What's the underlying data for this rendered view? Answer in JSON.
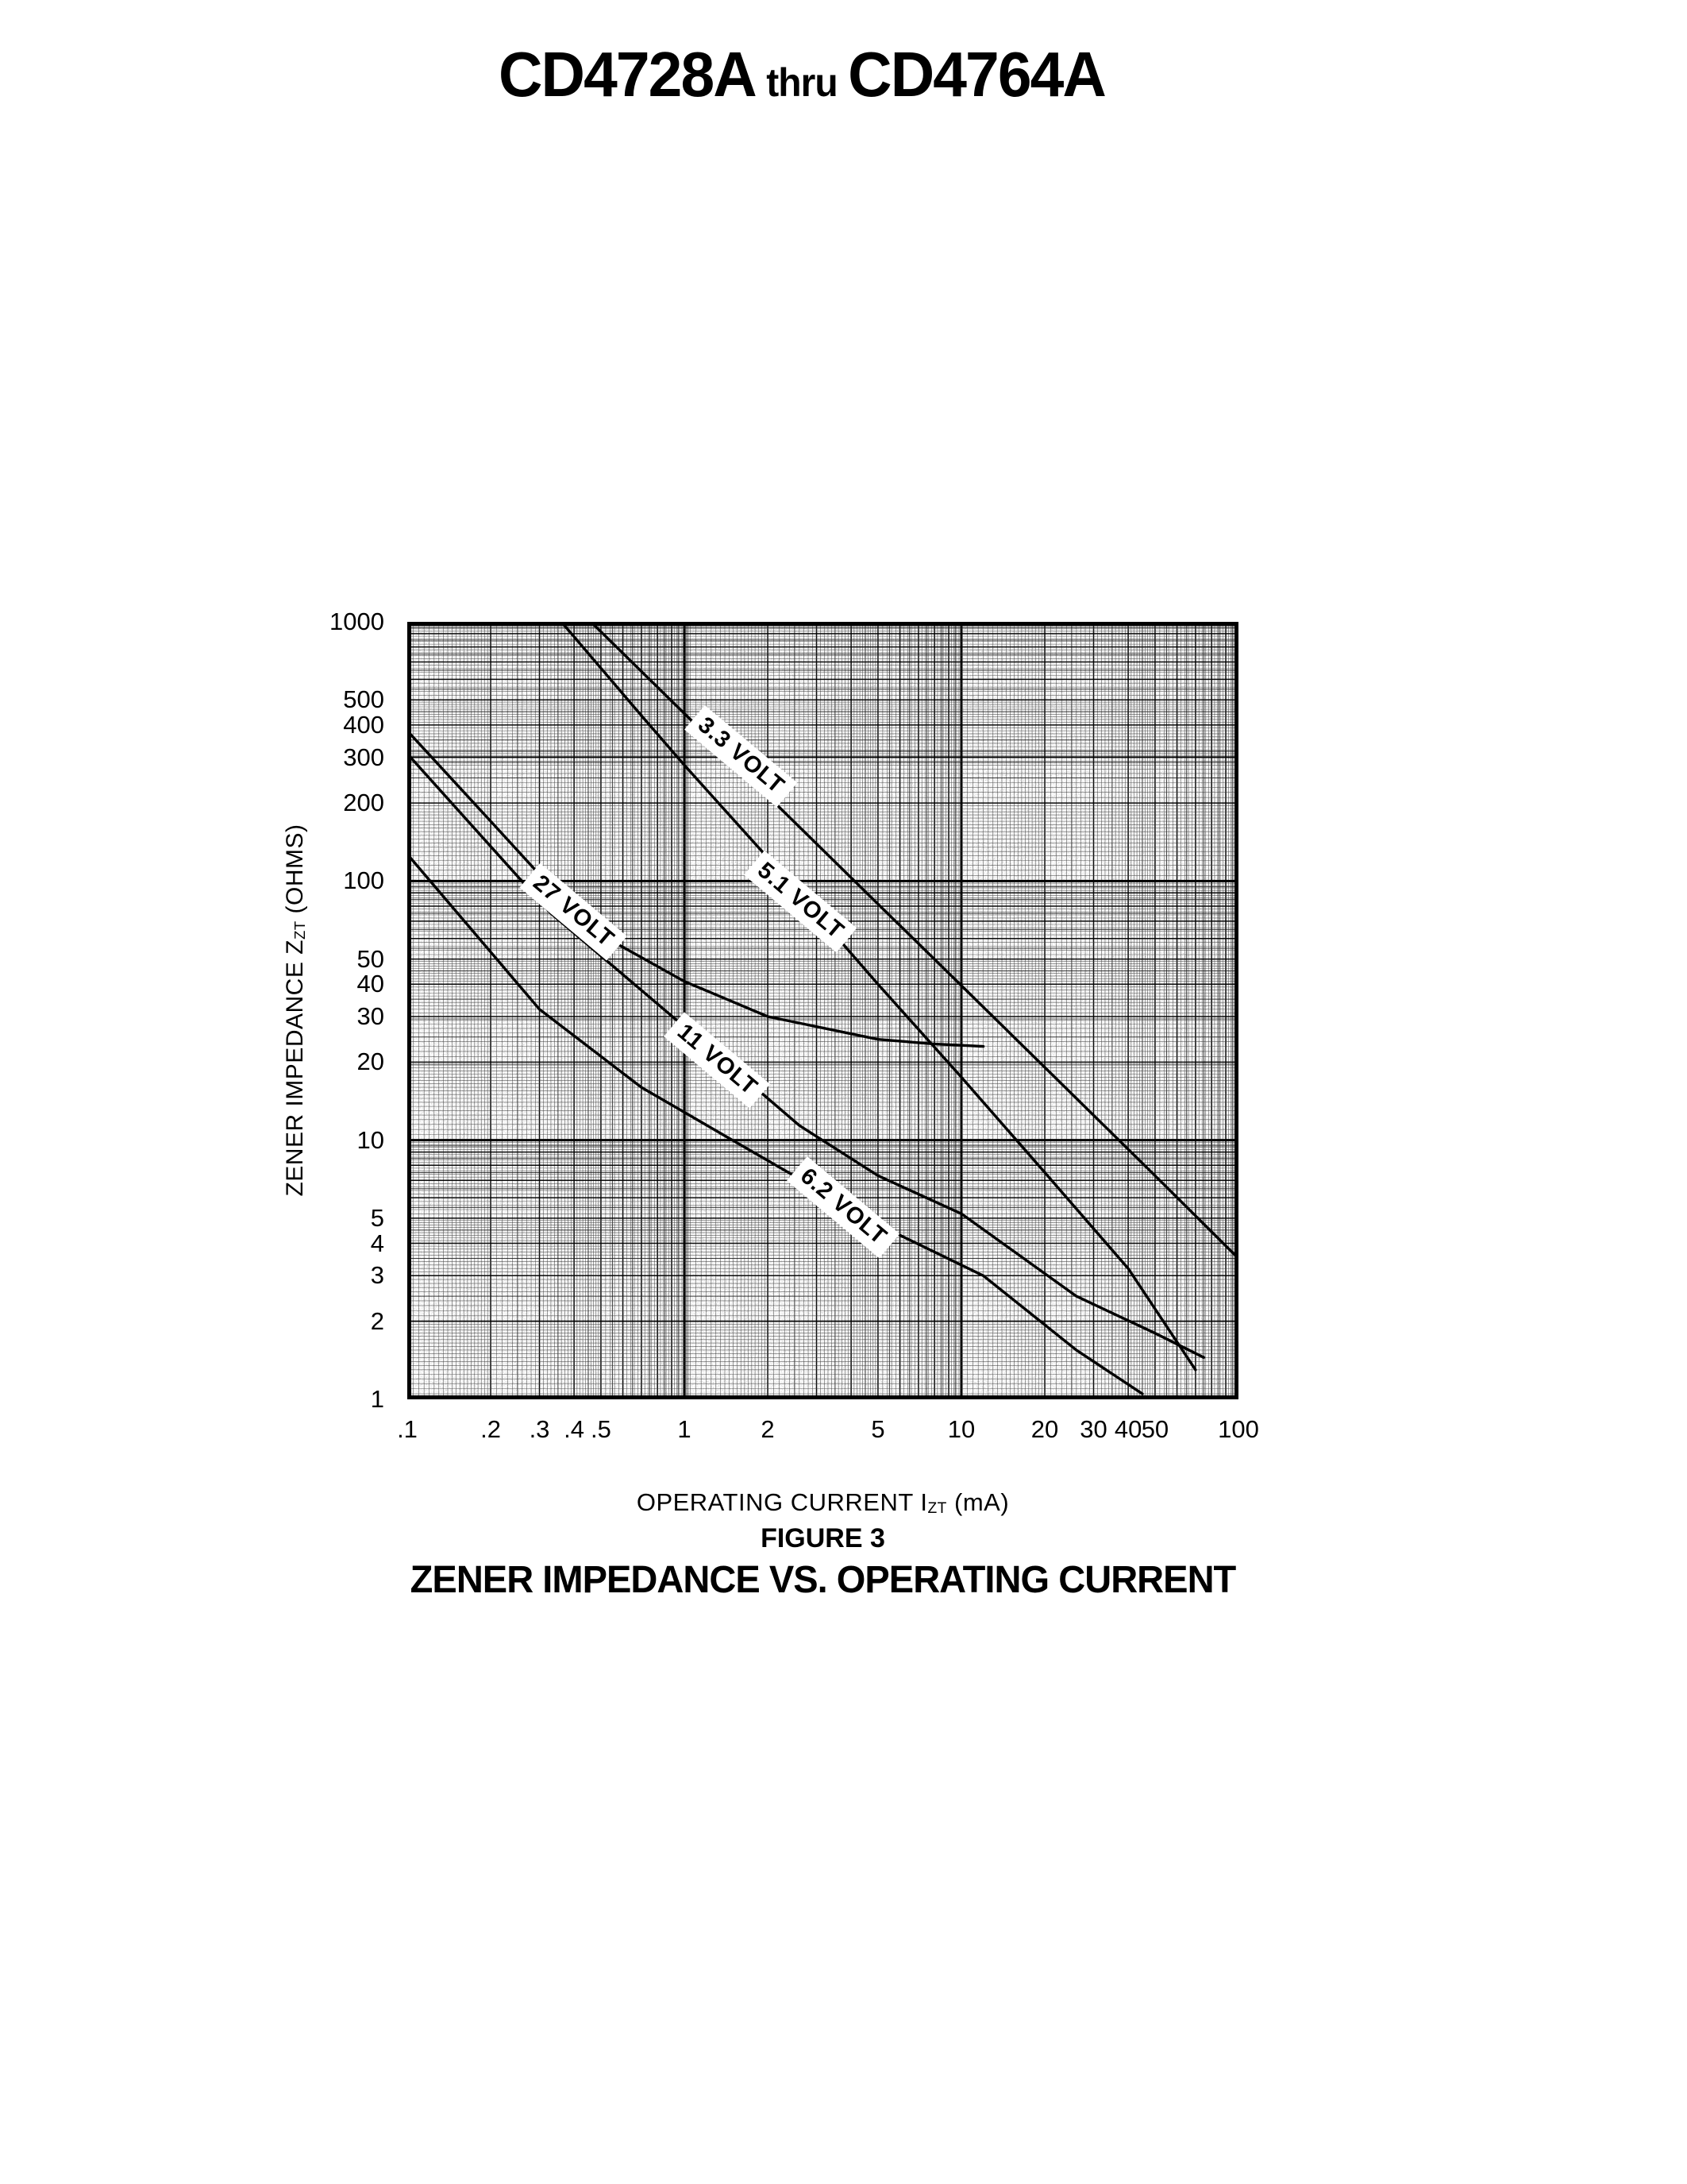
{
  "header": {
    "part_left": "CD4728A",
    "thru": "thru",
    "part_right": "CD4764A"
  },
  "captions": {
    "figure_label": "FIGURE 3",
    "figure_title": "ZENER IMPEDANCE VS. OPERATING CURRENT"
  },
  "axes": {
    "x": {
      "title_prefix": "OPERATING CURRENT I",
      "title_sub": "ZT",
      "title_suffix": " (mA)"
    },
    "y": {
      "title_prefix": "ZENER IMPEDANCE Z",
      "title_sub": "ZT",
      "title_suffix": " (OHMS)"
    }
  },
  "chart_data": {
    "type": "line",
    "title": "ZENER IMPEDANCE VS. OPERATING CURRENT",
    "xlabel": "OPERATING CURRENT IZT (mA)",
    "ylabel": "ZENER IMPEDANCE ZZT (OHMS)",
    "x_axis": {
      "scale": "log",
      "min": 0.1,
      "max": 100,
      "tick_labels": [
        ".1",
        ".2",
        ".3",
        ".4",
        ".5",
        "1",
        "2",
        "5",
        "10",
        "20",
        "30",
        "40",
        "50",
        "100"
      ],
      "tick_values": [
        0.1,
        0.2,
        0.3,
        0.4,
        0.5,
        1,
        2,
        5,
        10,
        20,
        30,
        40,
        50,
        100
      ]
    },
    "y_axis": {
      "scale": "log",
      "min": 1,
      "max": 1000,
      "tick_labels": [
        "1000",
        "500",
        "400",
        "300",
        "200",
        "100",
        "50",
        "40",
        "30",
        "20",
        "10",
        "5",
        "4",
        "3",
        "2",
        "1"
      ],
      "tick_values": [
        1000,
        500,
        400,
        300,
        200,
        100,
        50,
        40,
        30,
        20,
        10,
        5,
        4,
        3,
        2,
        1
      ]
    },
    "grid": "dense log graph paper",
    "legend_position": "labels on curves",
    "series": [
      {
        "name": "3.3 VOLT",
        "points": [
          [
            0.46,
            1000
          ],
          [
            1,
            443
          ],
          [
            2,
            213
          ],
          [
            5,
            81.5
          ],
          [
            10,
            39.5
          ],
          [
            20,
            19.1
          ],
          [
            50,
            7.3
          ],
          [
            100,
            3.5
          ]
        ],
        "label_x": 420,
        "label_y": 169,
        "label_rotate": 40
      },
      {
        "name": "5.1 VOLT",
        "points": [
          [
            0.36,
            1000
          ],
          [
            0.7,
            435
          ],
          [
            1,
            280
          ],
          [
            2,
            123
          ],
          [
            5,
            40
          ],
          [
            10,
            17.5
          ],
          [
            20,
            7.5
          ],
          [
            40,
            3.2
          ],
          [
            70,
            1.3
          ]
        ],
        "label_x": 495,
        "label_y": 352,
        "label_rotate": 40
      },
      {
        "name": "27 VOLT",
        "points": [
          [
            0.1,
            380
          ],
          [
            0.2,
            170
          ],
          [
            0.45,
            66
          ],
          [
            1,
            41
          ],
          [
            2,
            30
          ],
          [
            5,
            24.5
          ],
          [
            8,
            23.5
          ],
          [
            12,
            23
          ]
        ],
        "label_x": 209,
        "label_y": 365,
        "label_rotate": 40
      },
      {
        "name": "11 VOLT",
        "points": [
          [
            0.1,
            310
          ],
          [
            0.33,
            75
          ],
          [
            1,
            27.4
          ],
          [
            2.6,
            11.4
          ],
          [
            5,
            7.3
          ],
          [
            10,
            5.2
          ],
          [
            26,
            2.5
          ],
          [
            50,
            1.8
          ],
          [
            75,
            1.45
          ]
        ],
        "label_x": 390,
        "label_y": 552,
        "label_rotate": 40
      },
      {
        "name": "6.2 VOLT",
        "points": [
          [
            0.1,
            127
          ],
          [
            0.3,
            32
          ],
          [
            0.7,
            16
          ],
          [
            1.4,
            10.4
          ],
          [
            3,
            6.5
          ],
          [
            6,
            4.3
          ],
          [
            12,
            3.0
          ],
          [
            26,
            1.55
          ],
          [
            45,
            1.05
          ]
        ],
        "label_x": 549,
        "label_y": 737,
        "label_rotate": 40
      }
    ]
  }
}
